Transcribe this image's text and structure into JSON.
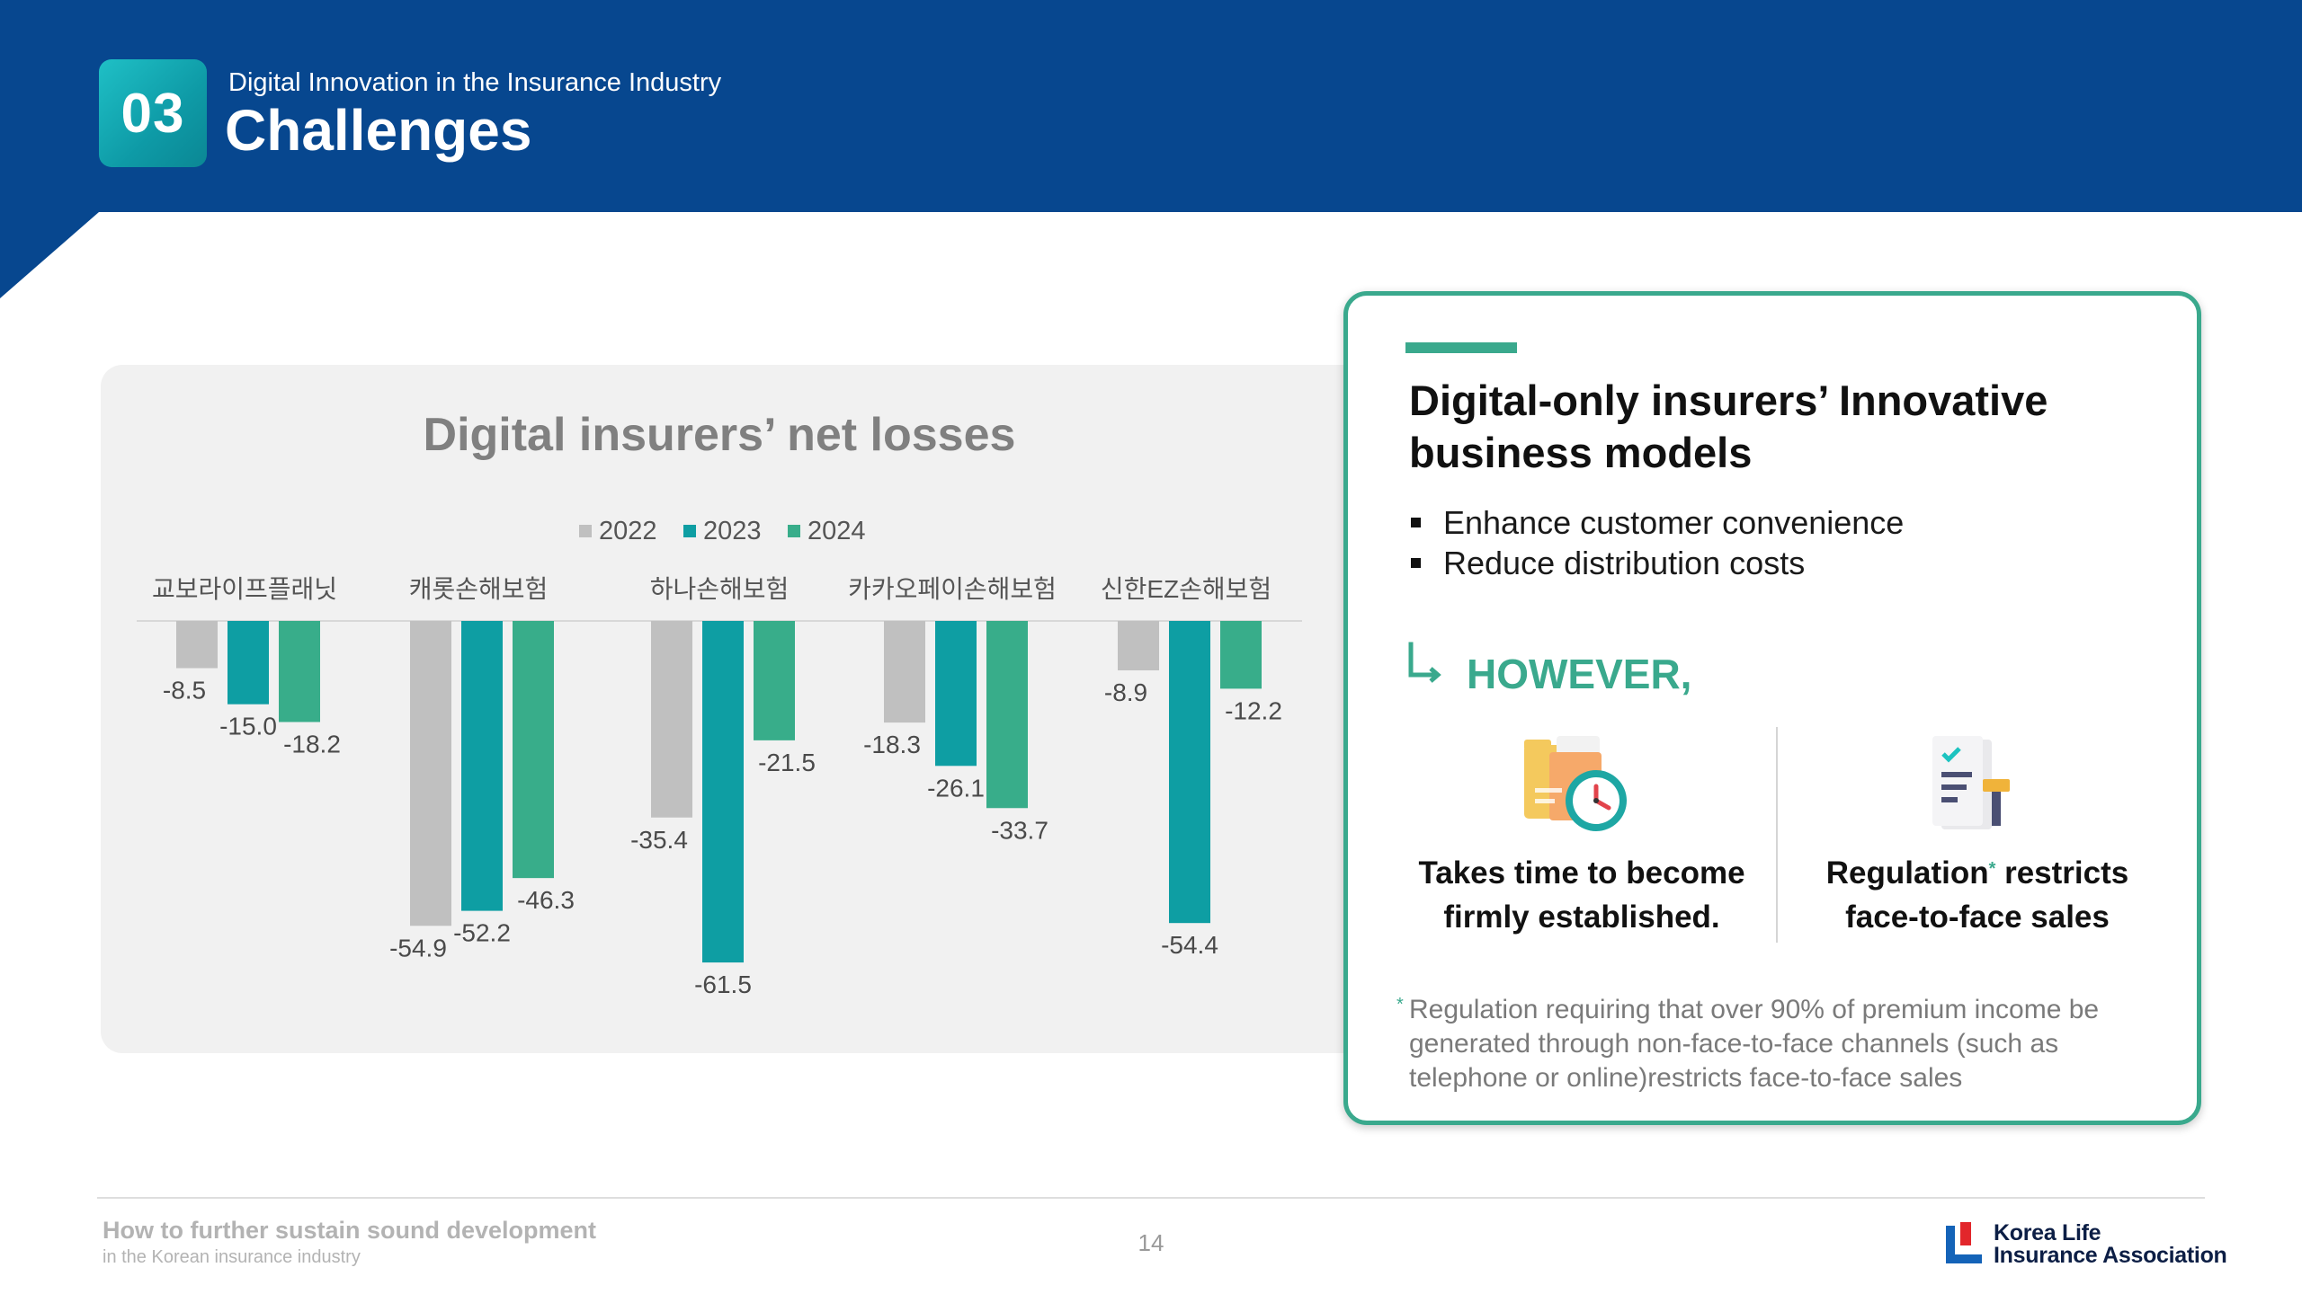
{
  "header": {
    "section_number": "03",
    "subtitle": "Digital Innovation in the Insurance Industry",
    "title": "Challenges",
    "color": "#07478f"
  },
  "chart_data": {
    "type": "bar",
    "title": "Digital insurers’ net losses",
    "categories": [
      "교보라이프플래닛",
      "캐롯손해보험",
      "하나손해보험",
      "카카오페이손해보험",
      "신한EZ손해보험"
    ],
    "series": [
      {
        "name": "2022",
        "color": "#c0c0c0",
        "values": [
          -8.5,
          -54.9,
          -35.4,
          -18.3,
          -8.9
        ]
      },
      {
        "name": "2023",
        "color": "#0e9ea3",
        "values": [
          -15.0,
          -52.2,
          -61.5,
          -26.1,
          -54.4
        ]
      },
      {
        "name": "2024",
        "color": "#38ad8a",
        "values": [
          -18.2,
          -46.3,
          -21.5,
          -33.7,
          -12.2
        ]
      }
    ],
    "value_labels": [
      [
        "-8.5",
        "-15.0",
        "-18.2"
      ],
      [
        "-54.9",
        "-52.2",
        "-46.3"
      ],
      [
        "-35.4",
        "-61.5",
        "-21.5"
      ],
      [
        "-18.3",
        "-26.1",
        "-33.7"
      ],
      [
        "-8.9",
        "-54.4",
        "-12.2"
      ]
    ],
    "xlabel": "",
    "ylabel": "",
    "ylim": [
      -65,
      0
    ],
    "legend_position": "top-center",
    "category_labels_position": "top",
    "grid": false
  },
  "card": {
    "title": "Digital-only insurers’ Innovative business models",
    "bullets": [
      "Enhance customer convenience",
      "Reduce distribution costs"
    ],
    "however": "HOWEVER,",
    "accent_color": "#3aa98d",
    "left_icon": "folder-clock-icon",
    "right_icon": "document-gavel-icon",
    "left_caption_line1": "Takes time to become",
    "left_caption_line2": "firmly established.",
    "right_caption_word": "Regulation",
    "right_caption_rest": " restricts",
    "right_caption_line2": "face-to-face sales",
    "asterisk": "*",
    "footnote": "Regulation requiring that over 90% of premium income be generated through non-face-to-face channels (such as telephone or online)restricts face-to-face sales"
  },
  "footer": {
    "title": "How to further sustain sound development",
    "subtitle": "in the Korean insurance industry",
    "page_number": "14",
    "logo_line1": "Korea Life",
    "logo_line2": "Insurance Association"
  }
}
